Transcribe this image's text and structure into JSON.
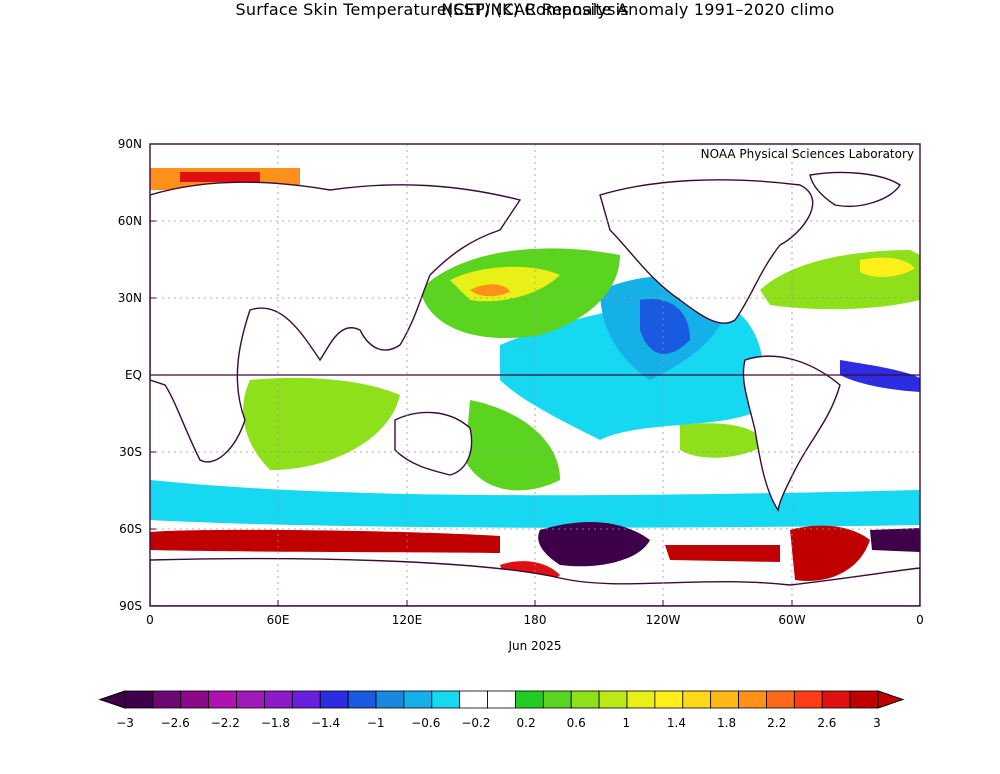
{
  "title": {
    "line1": "NCEP/NCAR Reanalysis",
    "line2": "Surface Skin Temperature(SST) (K) Composite Anomaly 1991–2020 climo"
  },
  "credit": "NOAA Physical Sciences Laboratory",
  "date_label": "Jun 2025",
  "axes": {
    "lat_labels": [
      "90N",
      "60N",
      "30N",
      "EQ",
      "30S",
      "60S",
      "90S"
    ],
    "lon_labels": [
      "0",
      "60E",
      "120E",
      "180",
      "120W",
      "60W",
      "0"
    ]
  },
  "colorbar": {
    "labels": [
      "−3",
      "−2.6",
      "−2.2",
      "−1.8",
      "−1.4",
      "−1",
      "−0.6",
      "−0.2",
      "0.2",
      "0.6",
      "1",
      "1.4",
      "1.8",
      "2.2",
      "2.6",
      "3"
    ],
    "colors": [
      "#3d0049",
      "#6a0a72",
      "#8a0a8a",
      "#b012b0",
      "#a01ab8",
      "#8c1cc8",
      "#6a1ee0",
      "#2c2ce0",
      "#1a5ae0",
      "#1a88e0",
      "#16b0e8",
      "#16d8f0",
      "#ffffff",
      "#ffffff",
      "#22cc22",
      "#5ad41e",
      "#8ee01a",
      "#bce818",
      "#e8f018",
      "#fff01a",
      "#ffd81a",
      "#ffb81a",
      "#ff901a",
      "#ff6a1a",
      "#ff3c14",
      "#e01010",
      "#c00000"
    ]
  },
  "map_colors": {
    "land": "#ffffff",
    "coast": "#3a0a3a",
    "deep_cold": "#3d0049",
    "cold": "#1a5ae0",
    "cool": "#16b0e8",
    "cyan": "#16d8f0",
    "warm_green": "#22cc22",
    "lime": "#8ee01a",
    "yellow": "#fff01a",
    "orange": "#ff901a",
    "red": "#e01010",
    "dark_red": "#c00000"
  }
}
